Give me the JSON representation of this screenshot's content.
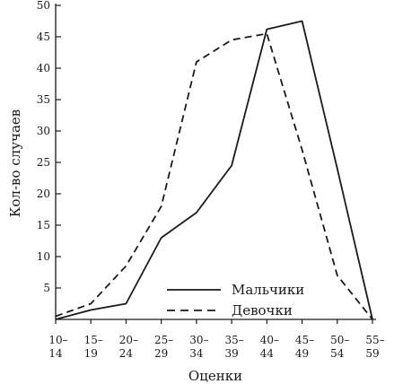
{
  "chart_data": {
    "type": "line",
    "title": "",
    "xlabel": "Оценки",
    "ylabel": "Кол-во случаев",
    "categories": [
      [
        "10–",
        "14"
      ],
      [
        "15–",
        "19"
      ],
      [
        "20–",
        "24"
      ],
      [
        "25–",
        "29"
      ],
      [
        "30–",
        "34"
      ],
      [
        "35–",
        "39"
      ],
      [
        "40–",
        "44"
      ],
      [
        "45–",
        "49"
      ],
      [
        "50–",
        "54"
      ],
      [
        "55–",
        "59"
      ]
    ],
    "ylim": [
      0,
      50
    ],
    "yticks": [
      5,
      10,
      15,
      20,
      25,
      30,
      35,
      40,
      45,
      50
    ],
    "grid": false,
    "legend_position": "bottom-right",
    "series": [
      {
        "name": "Мальчики",
        "style": "solid",
        "points": [
          [
            0,
            0
          ],
          [
            1,
            1.5
          ],
          [
            2,
            2.5
          ],
          [
            3,
            13
          ],
          [
            4,
            17
          ],
          [
            5,
            24.5
          ],
          [
            6,
            46.2
          ],
          [
            7,
            47.5
          ],
          [
            8,
            24
          ],
          [
            9,
            0
          ]
        ]
      },
      {
        "name": "Девочки",
        "style": "dashed",
        "points": [
          [
            0,
            0.5
          ],
          [
            1,
            2.5
          ],
          [
            2,
            8.5
          ],
          [
            3,
            18
          ],
          [
            4,
            41
          ],
          [
            5,
            44.5
          ],
          [
            6,
            45.5
          ],
          [
            7,
            27
          ],
          [
            8,
            7
          ],
          [
            9,
            0
          ]
        ]
      }
    ]
  }
}
